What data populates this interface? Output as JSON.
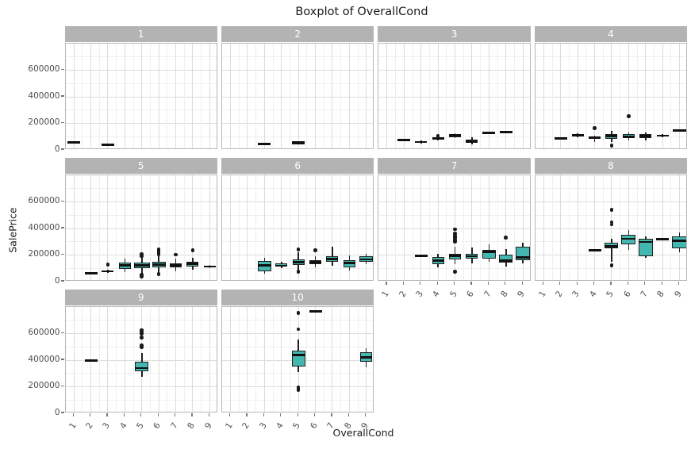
{
  "chart_data": {
    "type": "boxplot",
    "title": "Boxplot of OverallCond",
    "xlabel": "OverallCond",
    "ylabel": "SalePrice",
    "facet_labels": [
      "1",
      "2",
      "3",
      "4",
      "5",
      "6",
      "7",
      "8",
      "9",
      "10"
    ],
    "x_tick_labels": [
      "1",
      "2",
      "3",
      "4",
      "5",
      "6",
      "7",
      "8",
      "9"
    ],
    "y_ticks": [
      0,
      200000,
      400000,
      600000
    ],
    "y_tick_labels": [
      "0",
      "200000",
      "400000",
      "600000"
    ],
    "y_minor_ticks": [
      100000,
      300000,
      500000,
      700000
    ],
    "ylim": [
      0,
      800000
    ],
    "grid": true,
    "legend": "none",
    "colors": {
      "box_fill": "#44b8b0",
      "box_stroke": "#1f1f1f",
      "median": "#111111",
      "outlier": "#1a1a1a",
      "strip_bg": "#b3b3b3",
      "strip_text": "#ffffff",
      "grid_major": "#dcdcdc",
      "grid_minor": "#efefef",
      "panel_border": "#b7b7b7",
      "tick_text": "#4d4d4d"
    },
    "facets": [
      {
        "label": "1",
        "row": 0,
        "col": 0,
        "show_x_labels": false,
        "boxes": [
          {
            "x": 1,
            "type": "line",
            "value": 57000
          },
          {
            "x": 3,
            "type": "line",
            "value": 40000
          }
        ]
      },
      {
        "label": "2",
        "row": 0,
        "col": 1,
        "show_x_labels": false,
        "boxes": [
          {
            "x": 3,
            "type": "line",
            "value": 44000
          },
          {
            "x": 5,
            "type": "line",
            "value": 54000
          }
        ]
      },
      {
        "label": "3",
        "row": 0,
        "col": 2,
        "show_x_labels": false,
        "boxes": [
          {
            "x": 2,
            "type": "line",
            "value": 75000
          },
          {
            "x": 3,
            "type": "box",
            "lo": 48000,
            "q1": 54000,
            "med": 60000,
            "q3": 67000,
            "hi": 73000
          },
          {
            "x": 4,
            "type": "box",
            "lo": 74000,
            "q1": 80000,
            "med": 87000,
            "q3": 93000,
            "hi": 97000,
            "outliers": [
              105000
            ]
          },
          {
            "x": 5,
            "type": "box",
            "lo": 90000,
            "q1": 98000,
            "med": 110000,
            "q3": 117000,
            "hi": 123000
          },
          {
            "x": 6,
            "type": "box",
            "lo": 44000,
            "q1": 54000,
            "med": 62000,
            "q3": 79000,
            "hi": 94000
          },
          {
            "x": 7,
            "type": "line",
            "value": 127000
          },
          {
            "x": 8,
            "type": "line",
            "value": 132000
          }
        ]
      },
      {
        "label": "4",
        "row": 0,
        "col": 3,
        "show_x_labels": false,
        "boxes": [
          {
            "x": 2,
            "type": "line",
            "value": 86000
          },
          {
            "x": 3,
            "type": "box",
            "lo": 93000,
            "q1": 100000,
            "med": 110000,
            "q3": 121000,
            "hi": 127000
          },
          {
            "x": 4,
            "type": "box",
            "lo": 60000,
            "q1": 83000,
            "med": 92000,
            "q3": 100000,
            "hi": 107000,
            "outliers": [
              165000
            ]
          },
          {
            "x": 5,
            "type": "box",
            "lo": 60000,
            "q1": 81000,
            "med": 104000,
            "q3": 121000,
            "hi": 146000,
            "outliers": [
              34000
            ]
          },
          {
            "x": 6,
            "type": "box",
            "lo": 74000,
            "q1": 87000,
            "med": 100000,
            "q3": 117000,
            "hi": 130000,
            "outliers": [
              255000
            ]
          },
          {
            "x": 7,
            "type": "box",
            "lo": 70000,
            "q1": 90000,
            "med": 104000,
            "q3": 120000,
            "hi": 132000
          },
          {
            "x": 8,
            "type": "box",
            "lo": 94000,
            "q1": 100000,
            "med": 107000,
            "q3": 113000,
            "hi": 118000
          },
          {
            "x": 9,
            "type": "line",
            "value": 146000
          }
        ]
      },
      {
        "label": "5",
        "row": 1,
        "col": 0,
        "show_x_labels": false,
        "boxes": [
          {
            "x": 2,
            "type": "line",
            "value": 63000
          },
          {
            "x": 3,
            "type": "box",
            "lo": 64000,
            "q1": 70000,
            "med": 77000,
            "q3": 83000,
            "hi": 90000,
            "outliers": [
              128000
            ]
          },
          {
            "x": 4,
            "type": "box",
            "lo": 72000,
            "q1": 98000,
            "med": 121000,
            "q3": 144000,
            "hi": 176000
          },
          {
            "x": 5,
            "type": "box",
            "lo": 55000,
            "q1": 103000,
            "med": 124000,
            "q3": 142000,
            "hi": 180000,
            "outliers": [
              38000,
              50000,
              192000,
              205000
            ],
            "w": 0.95
          },
          {
            "x": 6,
            "type": "box",
            "lo": 62000,
            "q1": 108000,
            "med": 128000,
            "q3": 149000,
            "hi": 196000,
            "outliers": [
              57000,
              207000,
              218000,
              230000,
              243000
            ],
            "w": 0.8
          },
          {
            "x": 7,
            "type": "box",
            "lo": 80000,
            "q1": 107000,
            "med": 124000,
            "q3": 140000,
            "hi": 172000,
            "outliers": [
              204000
            ]
          },
          {
            "x": 8,
            "type": "box",
            "lo": 90000,
            "q1": 114000,
            "med": 134000,
            "q3": 152000,
            "hi": 182000,
            "outliers": [
              237000
            ]
          },
          {
            "x": 9,
            "type": "box",
            "lo": 100000,
            "q1": 107000,
            "med": 113000,
            "q3": 121000,
            "hi": 128000
          }
        ]
      },
      {
        "label": "6",
        "row": 1,
        "col": 1,
        "show_x_labels": false,
        "boxes": [
          {
            "x": 3,
            "type": "box",
            "lo": 62000,
            "q1": 77000,
            "med": 122000,
            "q3": 158000,
            "hi": 178000,
            "w": 0.8
          },
          {
            "x": 4,
            "type": "box",
            "lo": 104000,
            "q1": 112000,
            "med": 120000,
            "q3": 139000,
            "hi": 150000
          },
          {
            "x": 5,
            "type": "box",
            "lo": 85000,
            "q1": 124000,
            "med": 145000,
            "q3": 169000,
            "hi": 220000,
            "outliers": [
              75000,
              241000
            ]
          },
          {
            "x": 6,
            "type": "box",
            "lo": 110000,
            "q1": 133000,
            "med": 148000,
            "q3": 163000,
            "hi": 190000,
            "outliers": [
              237000
            ]
          },
          {
            "x": 7,
            "type": "box",
            "lo": 120000,
            "q1": 149000,
            "med": 169000,
            "q3": 190000,
            "hi": 261000
          },
          {
            "x": 8,
            "type": "box",
            "lo": 82000,
            "q1": 108000,
            "med": 139000,
            "q3": 159000,
            "hi": 200000
          },
          {
            "x": 9,
            "type": "box",
            "lo": 130000,
            "q1": 149000,
            "med": 168000,
            "q3": 190000,
            "hi": 210000,
            "w": 0.8
          }
        ]
      },
      {
        "label": "7",
        "row": 1,
        "col": 2,
        "show_x_labels": true,
        "boxes": [
          {
            "x": 3,
            "type": "line",
            "value": 194000
          },
          {
            "x": 4,
            "type": "box",
            "lo": 110000,
            "q1": 133000,
            "med": 159000,
            "q3": 184000,
            "hi": 210000
          },
          {
            "x": 5,
            "type": "box",
            "lo": 130000,
            "q1": 169000,
            "med": 194000,
            "q3": 210000,
            "hi": 265000,
            "outliers": [
              73000,
              302000,
              315000,
              330000,
              345000,
              362000,
              394000
            ]
          },
          {
            "x": 6,
            "type": "box",
            "lo": 140000,
            "q1": 172000,
            "med": 190000,
            "q3": 210000,
            "hi": 255000
          },
          {
            "x": 7,
            "type": "box",
            "lo": 150000,
            "q1": 176000,
            "med": 225000,
            "q3": 241000,
            "hi": 280000,
            "w": 0.8
          },
          {
            "x": 8,
            "type": "box",
            "lo": 115000,
            "q1": 143000,
            "med": 159000,
            "q3": 204000,
            "hi": 245000,
            "outliers": [
              333000
            ],
            "w": 0.8
          },
          {
            "x": 9,
            "type": "box",
            "lo": 140000,
            "q1": 160000,
            "med": 182000,
            "q3": 260000,
            "hi": 290000,
            "w": 0.85
          }
        ]
      },
      {
        "label": "8",
        "row": 1,
        "col": 3,
        "show_x_labels": true,
        "boxes": [
          {
            "x": 4,
            "type": "line",
            "value": 237000
          },
          {
            "x": 5,
            "type": "box",
            "lo": 150000,
            "q1": 251000,
            "med": 267000,
            "q3": 292000,
            "hi": 322000,
            "outliers": [
              122000,
              430000,
              447000,
              540000
            ],
            "w": 0.8
          },
          {
            "x": 6,
            "type": "box",
            "lo": 240000,
            "q1": 282000,
            "med": 322000,
            "q3": 353000,
            "hi": 390000,
            "w": 0.85
          },
          {
            "x": 7,
            "type": "box",
            "lo": 180000,
            "q1": 190000,
            "med": 298000,
            "q3": 322000,
            "hi": 340000,
            "w": 0.85
          },
          {
            "x": 8,
            "type": "line",
            "value": 318000
          },
          {
            "x": 9,
            "type": "box",
            "lo": 220000,
            "q1": 251000,
            "med": 306000,
            "q3": 343000,
            "hi": 370000,
            "w": 0.85
          }
        ]
      },
      {
        "label": "9",
        "row": 2,
        "col": 0,
        "show_x_labels": true,
        "boxes": [
          {
            "x": 2,
            "type": "line",
            "value": 397000
          },
          {
            "x": 5,
            "type": "box",
            "lo": 273000,
            "q1": 316000,
            "med": 341000,
            "q3": 386000,
            "hi": 453000,
            "outliers": [
              497000,
              512000,
              570000,
              600000,
              615000,
              627000
            ],
            "w": 0.8
          }
        ]
      },
      {
        "label": "10",
        "row": 2,
        "col": 1,
        "show_x_labels": true,
        "boxes": [
          {
            "x": 5,
            "type": "box",
            "lo": 312000,
            "q1": 355000,
            "med": 439000,
            "q3": 472000,
            "hi": 556000,
            "outliers": [
              172000,
              183000,
              195000,
              634000,
              755000
            ],
            "w": 0.8
          },
          {
            "x": 6,
            "type": "line",
            "value": 765000
          },
          {
            "x": 9,
            "type": "box",
            "lo": 347000,
            "q1": 386000,
            "med": 420000,
            "q3": 459000,
            "hi": 492000,
            "w": 0.72
          }
        ]
      }
    ]
  }
}
